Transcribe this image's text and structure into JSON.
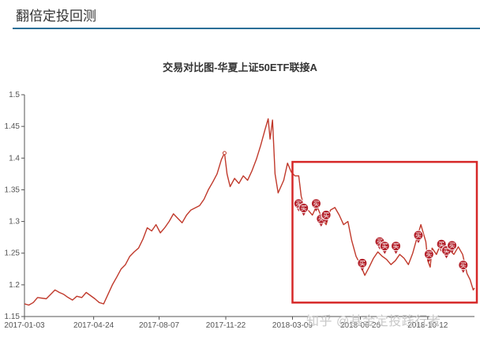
{
  "header": {
    "title": "翻倍定投回测"
  },
  "watermark": "知乎 @基金定投践行者",
  "chart_data": {
    "type": "line",
    "title": "交易对比图-华夏上证50ETF联接A",
    "xlabel": "",
    "ylabel": "",
    "x_ticks": [
      "2017-01-03",
      "2017-04-24",
      "2017-08-07",
      "2017-11-22",
      "2018-03-09",
      "2018-06-26",
      "2018-10-12"
    ],
    "y_ticks": [
      1.15,
      1.2,
      1.25,
      1.3,
      1.35,
      1.4,
      1.45,
      1.5
    ],
    "ylim": [
      1.15,
      1.5
    ],
    "x_range": [
      "2017-01-03",
      "2018-12-26"
    ],
    "grid": false,
    "line_color": "#c0392b",
    "series": [
      {
        "points": [
          [
            "2017-01-03",
            1.17
          ],
          [
            "2017-01-10",
            1.168
          ],
          [
            "2017-01-17",
            1.172
          ],
          [
            "2017-01-24",
            1.18
          ],
          [
            "2017-02-07",
            1.178
          ],
          [
            "2017-02-14",
            1.185
          ],
          [
            "2017-02-21",
            1.192
          ],
          [
            "2017-02-28",
            1.188
          ],
          [
            "2017-03-07",
            1.185
          ],
          [
            "2017-03-14",
            1.18
          ],
          [
            "2017-03-21",
            1.176
          ],
          [
            "2017-03-28",
            1.182
          ],
          [
            "2017-04-05",
            1.18
          ],
          [
            "2017-04-12",
            1.188
          ],
          [
            "2017-04-19",
            1.183
          ],
          [
            "2017-04-26",
            1.178
          ],
          [
            "2017-05-03",
            1.172
          ],
          [
            "2017-05-10",
            1.17
          ],
          [
            "2017-05-17",
            1.185
          ],
          [
            "2017-05-24",
            1.2
          ],
          [
            "2017-05-31",
            1.212
          ],
          [
            "2017-06-07",
            1.225
          ],
          [
            "2017-06-14",
            1.232
          ],
          [
            "2017-06-21",
            1.245
          ],
          [
            "2017-06-28",
            1.252
          ],
          [
            "2017-07-05",
            1.258
          ],
          [
            "2017-07-12",
            1.272
          ],
          [
            "2017-07-19",
            1.29
          ],
          [
            "2017-07-26",
            1.285
          ],
          [
            "2017-08-02",
            1.295
          ],
          [
            "2017-08-09",
            1.282
          ],
          [
            "2017-08-16",
            1.29
          ],
          [
            "2017-08-23",
            1.3
          ],
          [
            "2017-08-30",
            1.312
          ],
          [
            "2017-09-06",
            1.305
          ],
          [
            "2017-09-13",
            1.298
          ],
          [
            "2017-09-20",
            1.31
          ],
          [
            "2017-09-27",
            1.318
          ],
          [
            "2017-10-11",
            1.325
          ],
          [
            "2017-10-18",
            1.335
          ],
          [
            "2017-10-25",
            1.35
          ],
          [
            "2017-11-01",
            1.362
          ],
          [
            "2017-11-08",
            1.375
          ],
          [
            "2017-11-15",
            1.398
          ],
          [
            "2017-11-20",
            1.408
          ],
          [
            "2017-11-24",
            1.375
          ],
          [
            "2017-11-29",
            1.355
          ],
          [
            "2017-12-06",
            1.368
          ],
          [
            "2017-12-13",
            1.36
          ],
          [
            "2017-12-20",
            1.372
          ],
          [
            "2017-12-27",
            1.365
          ],
          [
            "2018-01-03",
            1.38
          ],
          [
            "2018-01-10",
            1.398
          ],
          [
            "2018-01-17",
            1.42
          ],
          [
            "2018-01-24",
            1.445
          ],
          [
            "2018-01-29",
            1.462
          ],
          [
            "2018-02-01",
            1.43
          ],
          [
            "2018-02-05",
            1.46
          ],
          [
            "2018-02-09",
            1.375
          ],
          [
            "2018-02-14",
            1.345
          ],
          [
            "2018-02-23",
            1.365
          ],
          [
            "2018-03-01",
            1.392
          ],
          [
            "2018-03-07",
            1.378
          ],
          [
            "2018-03-13",
            1.372
          ],
          [
            "2018-03-19",
            1.372
          ],
          [
            "2018-03-23",
            1.34
          ],
          [
            "2018-03-28",
            1.322
          ],
          [
            "2018-04-03",
            1.318
          ],
          [
            "2018-04-10",
            1.31
          ],
          [
            "2018-04-17",
            1.325
          ],
          [
            "2018-04-24",
            1.308
          ],
          [
            "2018-05-02",
            1.295
          ],
          [
            "2018-05-09",
            1.318
          ],
          [
            "2018-05-16",
            1.322
          ],
          [
            "2018-05-23",
            1.31
          ],
          [
            "2018-05-30",
            1.295
          ],
          [
            "2018-06-06",
            1.3
          ],
          [
            "2018-06-12",
            1.27
          ],
          [
            "2018-06-19",
            1.245
          ],
          [
            "2018-06-26",
            1.232
          ],
          [
            "2018-07-03",
            1.215
          ],
          [
            "2018-07-10",
            1.228
          ],
          [
            "2018-07-17",
            1.242
          ],
          [
            "2018-07-24",
            1.252
          ],
          [
            "2018-07-31",
            1.245
          ],
          [
            "2018-08-07",
            1.24
          ],
          [
            "2018-08-14",
            1.232
          ],
          [
            "2018-08-21",
            1.238
          ],
          [
            "2018-08-28",
            1.248
          ],
          [
            "2018-09-04",
            1.242
          ],
          [
            "2018-09-11",
            1.232
          ],
          [
            "2018-09-18",
            1.25
          ],
          [
            "2018-09-25",
            1.275
          ],
          [
            "2018-10-01",
            1.295
          ],
          [
            "2018-10-09",
            1.268
          ],
          [
            "2018-10-12",
            1.238
          ],
          [
            "2018-10-16",
            1.228
          ],
          [
            "2018-10-19",
            1.258
          ],
          [
            "2018-10-26",
            1.248
          ],
          [
            "2018-11-02",
            1.265
          ],
          [
            "2018-11-09",
            1.262
          ],
          [
            "2018-11-16",
            1.255
          ],
          [
            "2018-11-23",
            1.248
          ],
          [
            "2018-11-30",
            1.26
          ],
          [
            "2018-12-07",
            1.248
          ],
          [
            "2018-12-14",
            1.218
          ],
          [
            "2018-12-19",
            1.208
          ],
          [
            "2018-12-24",
            1.192
          ],
          [
            "2018-12-26",
            1.195
          ]
        ]
      }
    ],
    "buy_markers": {
      "label": "买",
      "points": [
        [
          "2018-03-19",
          1.322
        ],
        [
          "2018-03-27",
          1.315
        ],
        [
          "2018-04-16",
          1.322
        ],
        [
          "2018-04-24",
          1.298
        ],
        [
          "2018-05-02",
          1.304
        ],
        [
          "2018-06-29",
          1.228
        ],
        [
          "2018-07-27",
          1.262
        ],
        [
          "2018-08-04",
          1.255
        ],
        [
          "2018-08-22",
          1.255
        ],
        [
          "2018-09-27",
          1.272
        ],
        [
          "2018-10-14",
          1.242
        ],
        [
          "2018-11-03",
          1.258
        ],
        [
          "2018-11-11",
          1.248
        ],
        [
          "2018-11-20",
          1.256
        ],
        [
          "2018-12-08",
          1.225
        ]
      ]
    },
    "highlight_box": {
      "x_from": "2018-03-09",
      "x_to": "2018-12-31",
      "y_from": 1.172,
      "y_to": 1.394,
      "color": "#d62828"
    }
  }
}
